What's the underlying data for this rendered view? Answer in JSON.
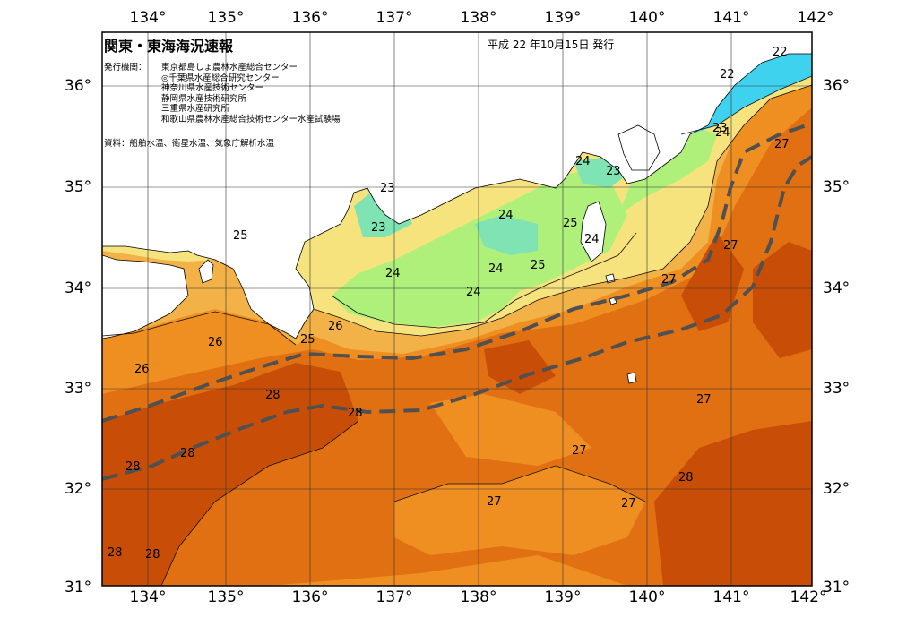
{
  "header": {
    "title": "関東・東海海況速報",
    "issue_date": "平成 22 年10月15日 発行"
  },
  "issuers": {
    "label": "発行機関：",
    "organizations": [
      "東京都島しょ農林水産総合センター",
      "◎千葉県水産総合研究センター",
      "神奈川県水産技術センター",
      "静岡県水産技術研究所",
      "三重県水産研究所",
      "和歌山県農林水産総合技術センター水産試験場"
    ]
  },
  "sources": "資料：船舶水温、衛星水温、気象庁解析水温",
  "axes": {
    "longitude_labels": [
      "134°",
      "135°",
      "136°",
      "137°",
      "138°",
      "139°",
      "140°",
      "141°",
      "142°"
    ],
    "latitude_labels": [
      "36°",
      "35°",
      "34°",
      "33°",
      "32°",
      "31°"
    ]
  },
  "isotherm_labels": [
    "22",
    "22",
    "23",
    "24",
    "23",
    "24",
    "23",
    "23",
    "24",
    "24",
    "25",
    "24",
    "24",
    "25",
    "25",
    "24",
    "27",
    "27",
    "27",
    "26",
    "26",
    "25",
    "26",
    "28",
    "28",
    "28",
    "28",
    "28",
    "28",
    "27",
    "27",
    "28",
    "27",
    "27"
  ],
  "colors": {
    "t22": "#3fd2ef",
    "t23": "#7fe3b3",
    "t24": "#aef07a",
    "t25": "#f6e37e",
    "t26": "#f3b248",
    "t27": "#ef8f22",
    "t28": "#e07012",
    "t29": "#c84e08",
    "land": "#ffffff",
    "kuroshio_axis": "#505050"
  }
}
